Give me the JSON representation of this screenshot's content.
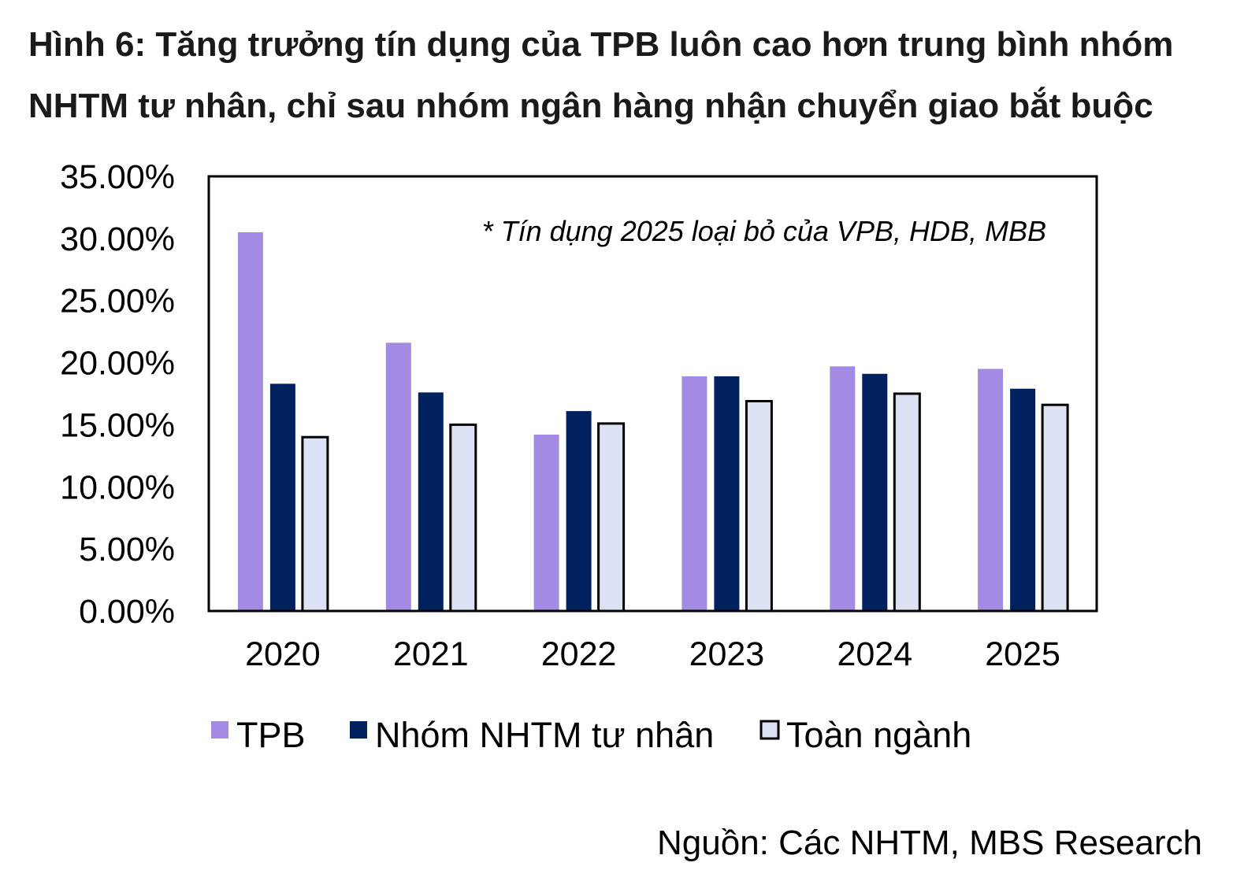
{
  "figure": {
    "label": "Hình 6:",
    "title": "Tăng trưởng tín dụng của TPB luôn cao hơn trung bình nhóm NHTM tư nhân, chỉ sau nhóm ngân hàng nhận chuyển giao bắt buộc",
    "source": "Nguồn: Các NHTM, MBS Research"
  },
  "chart_data": {
    "type": "bar",
    "categories": [
      "2020",
      "2021",
      "2022",
      "2023",
      "2024",
      "2025"
    ],
    "series": [
      {
        "name": "TPB",
        "color": "#a38be3",
        "values": [
          0.305,
          0.216,
          0.142,
          0.189,
          0.197,
          0.195
        ]
      },
      {
        "name": "Nhóm NHTM tư nhân",
        "color": "#00205e",
        "values": [
          0.183,
          0.176,
          0.161,
          0.189,
          0.191,
          0.179
        ]
      },
      {
        "name": "Toàn ngành",
        "color": "#dce1f4",
        "values": [
          0.14,
          0.15,
          0.151,
          0.169,
          0.175,
          0.166
        ]
      }
    ],
    "ylim": [
      0,
      0.35
    ],
    "yticks": [
      "0.00%",
      "5.00%",
      "10.00%",
      "15.00%",
      "20.00%",
      "25.00%",
      "30.00%",
      "35.00%"
    ],
    "annotation": "* Tín dụng 2025 loại bỏ của VPB, HDB, MBB",
    "legend_position": "bottom",
    "grid": false
  }
}
